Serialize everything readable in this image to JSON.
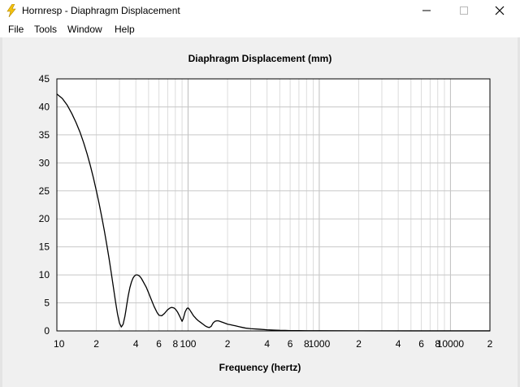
{
  "window": {
    "title": "Hornresp - Diaphragm Displacement",
    "icon": "lightning-bolt-icon",
    "controls": [
      "minimize-icon",
      "maximize-icon",
      "close-icon"
    ]
  },
  "menu": {
    "items": [
      "File",
      "Tools",
      "Window",
      "Help"
    ]
  },
  "chart_data": {
    "type": "line",
    "title": "Diaphragm Displacement (mm)",
    "xlabel": "Frequency (hertz)",
    "ylabel": "",
    "xscale": "log",
    "xlim": [
      10,
      20000
    ],
    "ylim": [
      0,
      45
    ],
    "grid": true,
    "x_tick_labels": [
      {
        "x": 10,
        "label": "10"
      },
      {
        "x": 20,
        "label": "2"
      },
      {
        "x": 40,
        "label": "4"
      },
      {
        "x": 60,
        "label": "6"
      },
      {
        "x": 80,
        "label": "8"
      },
      {
        "x": 100,
        "label": "100"
      },
      {
        "x": 200,
        "label": "2"
      },
      {
        "x": 400,
        "label": "4"
      },
      {
        "x": 600,
        "label": "6"
      },
      {
        "x": 800,
        "label": "8"
      },
      {
        "x": 1000,
        "label": "1000"
      },
      {
        "x": 2000,
        "label": "2"
      },
      {
        "x": 4000,
        "label": "4"
      },
      {
        "x": 6000,
        "label": "6"
      },
      {
        "x": 8000,
        "label": "8"
      },
      {
        "x": 10000,
        "label": "10000"
      },
      {
        "x": 20000,
        "label": "2"
      }
    ],
    "y_ticks": [
      0,
      5,
      10,
      15,
      20,
      25,
      30,
      35,
      40,
      45
    ],
    "series": [
      {
        "color": "#000000",
        "x": [
          10,
          11,
          12,
          13,
          14,
          15,
          16,
          17,
          18,
          19,
          20,
          21,
          22,
          23,
          24,
          25,
          26,
          27,
          28,
          29,
          30,
          31,
          32,
          33,
          33.5,
          34,
          35,
          36,
          37,
          38,
          39,
          40,
          41,
          42,
          43,
          44,
          45,
          46,
          48,
          50,
          52,
          55,
          58,
          60,
          63,
          66,
          70,
          73,
          75,
          78,
          80,
          83,
          86,
          88,
          90,
          92,
          95,
          98,
          100,
          102,
          104,
          106,
          108,
          110,
          113,
          116,
          120,
          125,
          130,
          135,
          140,
          145,
          150,
          155,
          160,
          165,
          170,
          175,
          180,
          185,
          190,
          195,
          200,
          210,
          220,
          230,
          240,
          250,
          275,
          300,
          350,
          400,
          450,
          500,
          550,
          600,
          700,
          800,
          1000,
          2000,
          5000,
          10000,
          20000
        ],
        "values": [
          42.3,
          41.5,
          40.3,
          38.8,
          37.2,
          35.5,
          33.6,
          31.6,
          29.5,
          27.3,
          25.0,
          22.7,
          20.3,
          17.9,
          15.4,
          12.9,
          10.3,
          7.7,
          5.2,
          3.0,
          1.4,
          0.7,
          1.2,
          2.6,
          3.5,
          4.5,
          6.3,
          7.7,
          8.7,
          9.4,
          9.8,
          10.0,
          10.0,
          9.9,
          9.7,
          9.4,
          9.0,
          8.6,
          7.8,
          6.8,
          5.8,
          4.4,
          3.3,
          2.8,
          2.7,
          3.1,
          3.8,
          4.1,
          4.2,
          4.1,
          3.9,
          3.4,
          2.7,
          2.2,
          1.7,
          2.2,
          3.4,
          4.0,
          4.1,
          3.9,
          3.6,
          3.3,
          3.0,
          2.7,
          2.4,
          2.1,
          1.8,
          1.5,
          1.2,
          0.9,
          0.7,
          0.6,
          0.8,
          1.4,
          1.7,
          1.8,
          1.8,
          1.7,
          1.6,
          1.5,
          1.4,
          1.3,
          1.2,
          1.1,
          1.0,
          0.9,
          0.8,
          0.7,
          0.5,
          0.4,
          0.3,
          0.2,
          0.15,
          0.1,
          0.08,
          0.06,
          0.05,
          0.04,
          0.03,
          0.02,
          0.01,
          0.01,
          0.01
        ]
      }
    ]
  }
}
